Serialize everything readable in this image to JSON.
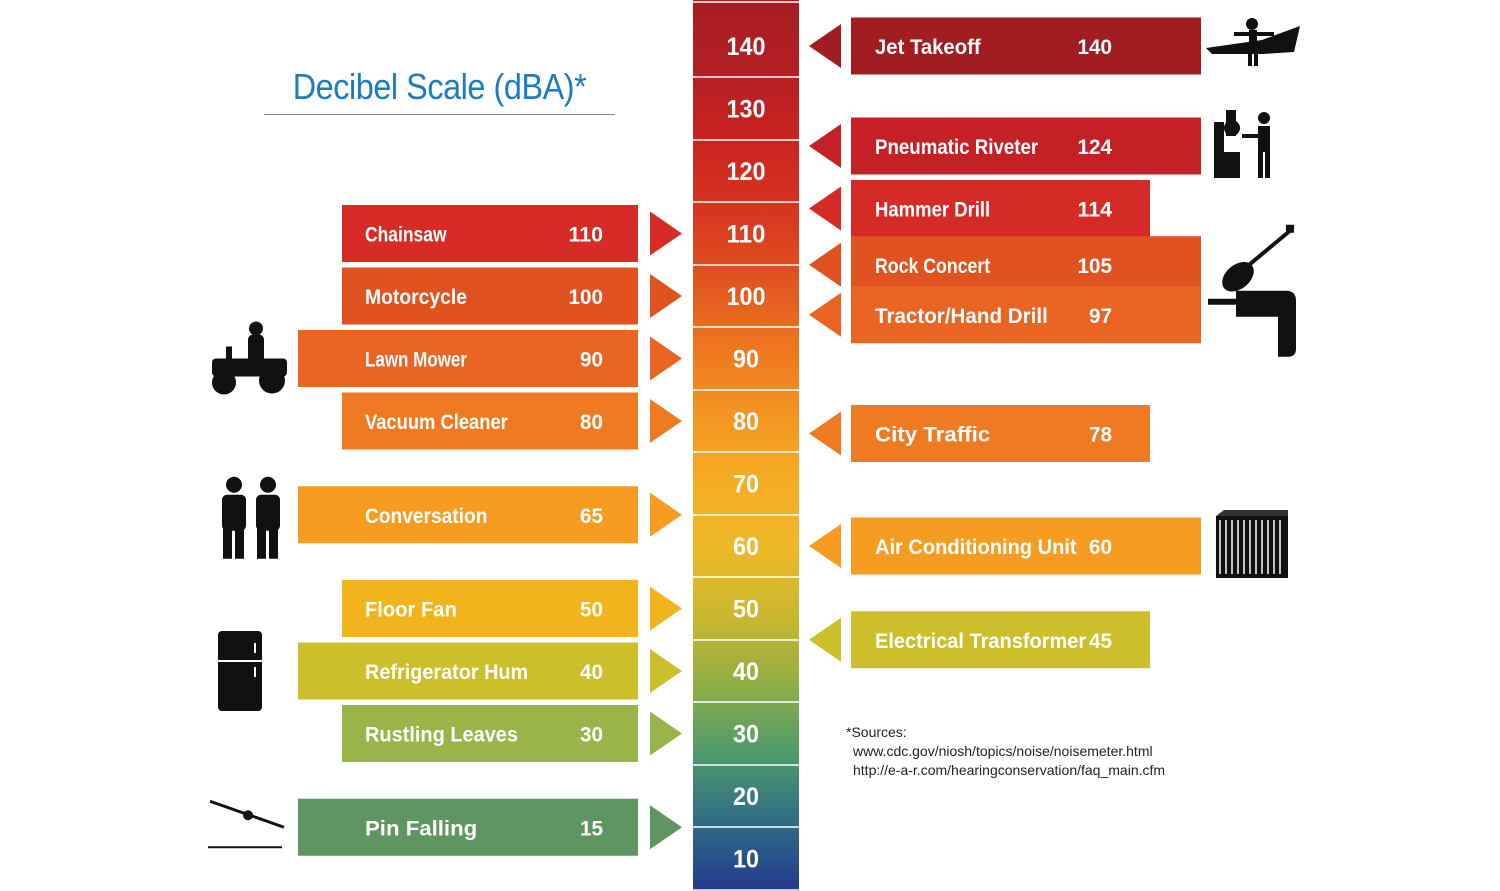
{
  "title": "Decibel Scale (dBA)*",
  "sources": {
    "label": "*Sources:",
    "lines": [
      "www.cdc.gov/niosh/topics/noise/noisemeter.html",
      "http://e-a-r.com/hearingconservation/faq_main.cfm"
    ]
  },
  "chart_data": {
    "type": "bar",
    "title": "Decibel Scale (dBA)*",
    "scale_ticks": [
      140,
      130,
      120,
      110,
      100,
      90,
      80,
      70,
      60,
      50,
      40,
      30,
      20,
      10
    ],
    "scale_colors": [
      "#a51d22",
      "#b41f24",
      "#c9231f",
      "#d63320",
      "#e0511e",
      "#ed7420",
      "#f39422",
      "#f5ac24",
      "#eeb928",
      "#c9b72f",
      "#8fae45",
      "#4f9a6c",
      "#2f6c85",
      "#23398e"
    ],
    "left_items": [
      {
        "label": "Chainsaw",
        "value": 110,
        "color": "#d62b27",
        "icon": ""
      },
      {
        "label": "Motorcycle",
        "value": 100,
        "color": "#e0521f",
        "icon": ""
      },
      {
        "label": "Lawn Mower",
        "value": 90,
        "color": "#ea6424",
        "icon": "lawn-mower-icon"
      },
      {
        "label": "Vacuum Cleaner",
        "value": 80,
        "color": "#ef7a22",
        "icon": ""
      },
      {
        "label": "Conversation",
        "value": 65,
        "color": "#f59c21",
        "icon": "people-icon"
      },
      {
        "label": "Floor Fan",
        "value": 50,
        "color": "#f2b41c",
        "icon": ""
      },
      {
        "label": "Refrigerator Hum",
        "value": 40,
        "color": "#cdbf2c",
        "icon": "refrigerator-icon"
      },
      {
        "label": "Rustling Leaves",
        "value": 30,
        "color": "#9bb44a",
        "icon": ""
      },
      {
        "label": "Pin Falling",
        "value": 15,
        "color": "#5f9560",
        "icon": "pin-icon"
      }
    ],
    "right_items": [
      {
        "label": "Jet Takeoff",
        "value": 140,
        "color": "#a11d22",
        "icon": "jet-icon"
      },
      {
        "label": "Pneumatic Riveter",
        "value": 124,
        "color": "#c42026",
        "icon": "riveter-worker-icon"
      },
      {
        "label": "Hammer Drill",
        "value": 114,
        "color": "#d52b27",
        "icon": ""
      },
      {
        "label": "Rock Concert",
        "value": 105,
        "color": "#e0521f",
        "icon": "guitar-icon"
      },
      {
        "label": "Tractor/Hand Drill",
        "value": 97,
        "color": "#ea6424",
        "icon": "drill-icon"
      },
      {
        "label": "City Traffic",
        "value": 78,
        "color": "#ef7a22",
        "icon": ""
      },
      {
        "label": "Air Conditioning Unit",
        "value": 60,
        "color": "#f59c21",
        "icon": "air-conditioner-icon"
      },
      {
        "label": "Electrical Transformer",
        "value": 45,
        "color": "#cdbf2c",
        "icon": ""
      }
    ]
  }
}
